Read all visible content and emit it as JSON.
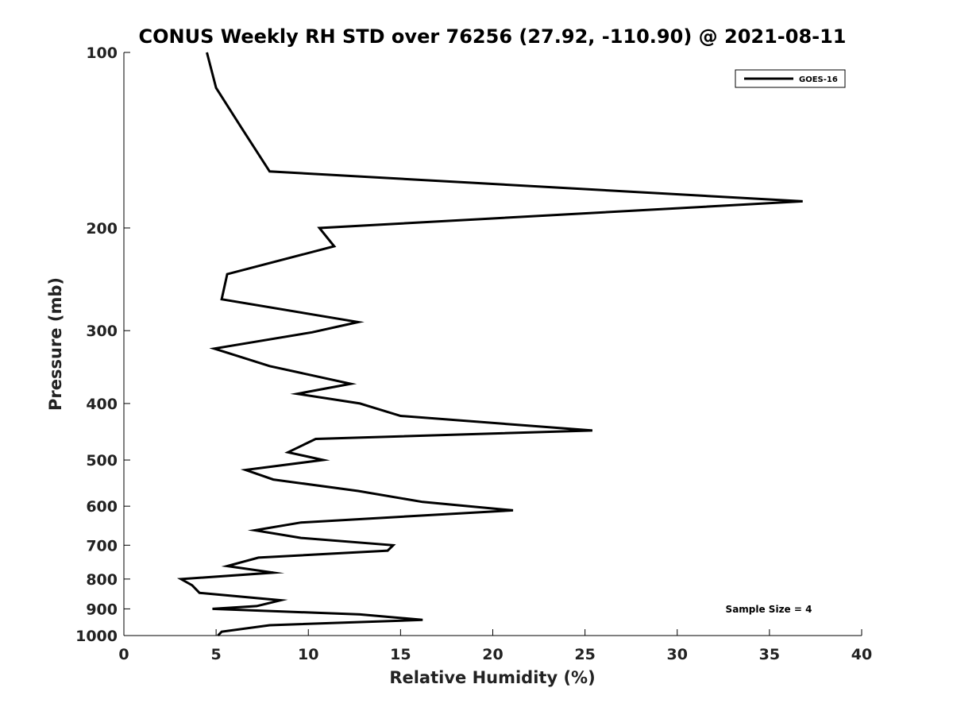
{
  "chart_data": {
    "type": "line",
    "title": "CONUS Weekly RH STD over 76256 (27.92, -110.90) @ 2021-08-11",
    "xlabel": "Relative Humidity (%)",
    "ylabel": "Pressure (mb)",
    "xlim": [
      0,
      40
    ],
    "ylim": [
      100,
      1000
    ],
    "y_scale": "log",
    "y_reversed": true,
    "x_ticks": [
      "0",
      "5",
      "10",
      "15",
      "20",
      "25",
      "30",
      "35",
      "40"
    ],
    "y_ticks": [
      "100",
      "200",
      "300",
      "400",
      "500",
      "600",
      "700",
      "800",
      "900",
      "1000"
    ],
    "grid": false,
    "legend_position": "top-right",
    "annotation": "Sample Size = 4",
    "series": [
      {
        "name": "GOES-16",
        "color": "#000000",
        "x": [
          4.5,
          5.0,
          6.4,
          7.9,
          36.8,
          10.6,
          11.4,
          5.6,
          5.3,
          12.7,
          10.2,
          4.9,
          7.9,
          12.3,
          9.4,
          12.8,
          15.0,
          25.4,
          10.4,
          8.9,
          10.8,
          6.6,
          8.1,
          12.7,
          16.2,
          21.1,
          9.6,
          7.1,
          9.6,
          14.6,
          14.3,
          7.3,
          5.6,
          8.1,
          3.1,
          3.7,
          4.1,
          8.5,
          7.2,
          4.8,
          12.8,
          16.2,
          7.9,
          5.3,
          5.1
        ],
        "y": [
          100,
          115,
          135,
          160,
          180,
          200,
          215,
          240,
          265,
          290,
          302,
          322,
          345,
          370,
          385,
          400,
          420,
          445,
          460,
          485,
          500,
          520,
          540,
          565,
          590,
          610,
          640,
          660,
          680,
          700,
          715,
          735,
          760,
          780,
          800,
          820,
          845,
          870,
          890,
          900,
          920,
          940,
          960,
          985,
          1000
        ]
      }
    ]
  }
}
